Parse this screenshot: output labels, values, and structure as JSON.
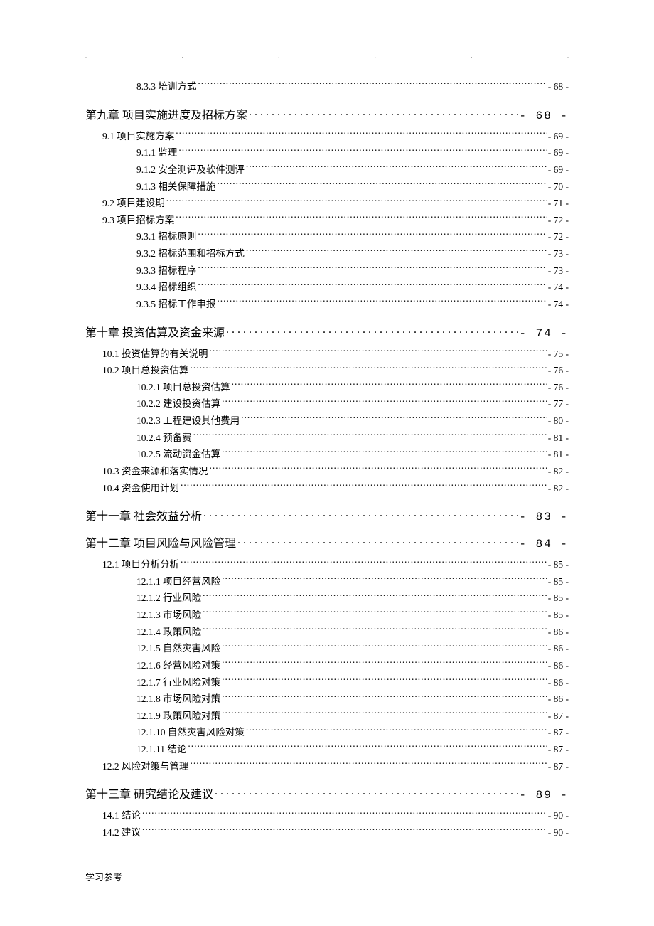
{
  "footer": "学习参考",
  "entries": [
    {
      "level": "subsection",
      "label": "8.3.3 培训方式",
      "page": "- 68 -"
    },
    {
      "level": "chapter",
      "label": "第九章 项目实施进度及招标方案",
      "page": "- 68 -"
    },
    {
      "level": "section",
      "label": "9.1  项目实施方案",
      "page": "- 69 -"
    },
    {
      "level": "subsection",
      "label": "9.1.1 监理",
      "page": "- 69 -"
    },
    {
      "level": "subsection",
      "label": "9.1.2 安全测评及软件测评",
      "page": "- 69 -"
    },
    {
      "level": "subsection",
      "label": "9.1.3 相关保障措施",
      "page": "- 70 -"
    },
    {
      "level": "section",
      "label": "9.2  项目建设期",
      "page": "- 71 -"
    },
    {
      "level": "section",
      "label": "9.3  项目招标方案",
      "page": "- 72 -"
    },
    {
      "level": "subsection",
      "label": "9.3.1 招标原则",
      "page": "- 72 -"
    },
    {
      "level": "subsection",
      "label": "9.3.2 招标范围和招标方式",
      "page": "- 73 -"
    },
    {
      "level": "subsection",
      "label": "9.3.3 招标程序",
      "page": "- 73 -"
    },
    {
      "level": "subsection",
      "label": "9.3.4 招标组织",
      "page": "- 74 -"
    },
    {
      "level": "subsection",
      "label": "9.3.5 招标工作申报",
      "page": "- 74 -"
    },
    {
      "level": "chapter",
      "label": "第十章 投资估算及资金来源",
      "page": "- 74 -"
    },
    {
      "level": "section",
      "label": "10.1  投资估算的有关说明",
      "page": "- 75 -"
    },
    {
      "level": "section",
      "label": "10.2  项目总投资估算",
      "page": "- 76 -"
    },
    {
      "level": "subsection",
      "label": "10.2.1 项目总投资估算",
      "page": "- 76 -"
    },
    {
      "level": "subsection",
      "label": "10.2.2 建设投资估算",
      "page": "- 77 -"
    },
    {
      "level": "subsection",
      "label": "10.2.3 工程建设其他费用",
      "page": "- 80 -"
    },
    {
      "level": "subsection",
      "label": "10.2.4 预备费",
      "page": "- 81 -"
    },
    {
      "level": "subsection",
      "label": "10.2.5 流动资金估算",
      "page": "- 81 -"
    },
    {
      "level": "section",
      "label": "10.3  资金来源和落实情况",
      "page": "- 82 -"
    },
    {
      "level": "section",
      "label": "10.4  资金使用计划",
      "page": "- 82 -"
    },
    {
      "level": "chapter",
      "label": "第十一章 社会效益分析",
      "page": "- 83 -"
    },
    {
      "level": "chapter",
      "label": "第十二章 项目风险与风险管理",
      "page": "- 84 -"
    },
    {
      "level": "section",
      "label": "12.1 项目分析分析",
      "page": "- 85 -"
    },
    {
      "level": "subsection",
      "label": "12.1.1 项目经营风险",
      "page": "- 85 -"
    },
    {
      "level": "subsection",
      "label": "12.1.2 行业风险",
      "page": "- 85 -"
    },
    {
      "level": "subsection",
      "label": "12.1.3 市场风险",
      "page": "- 85 -"
    },
    {
      "level": "subsection",
      "label": "12.1.4 政策风险",
      "page": "- 86 -"
    },
    {
      "level": "subsection",
      "label": "12.1.5 自然灾害风险",
      "page": "- 86 -"
    },
    {
      "level": "subsection",
      "label": "12.1.6 经营风险对策",
      "page": "- 86 -"
    },
    {
      "level": "subsection",
      "label": "12.1.7 行业风险对策",
      "page": "- 86 -"
    },
    {
      "level": "subsection",
      "label": "12.1.8 市场风险对策",
      "page": "- 86 -"
    },
    {
      "level": "subsection",
      "label": "12.1.9 政策风险对策",
      "page": "- 87 -"
    },
    {
      "level": "subsection",
      "label": "12.1.10 自然灾害风险对策",
      "page": "- 87 -"
    },
    {
      "level": "subsection",
      "label": "12.1.11 结论",
      "page": "- 87 -"
    },
    {
      "level": "section",
      "label": "12.2  风险对策与管理",
      "page": "- 87 -"
    },
    {
      "level": "chapter",
      "label": "第十三章 研究结论及建议",
      "page": "- 89 -"
    },
    {
      "level": "section",
      "label": "14.1  结论",
      "page": "- 90 -"
    },
    {
      "level": "section",
      "label": "14.2  建议",
      "page": "- 90 -"
    }
  ]
}
